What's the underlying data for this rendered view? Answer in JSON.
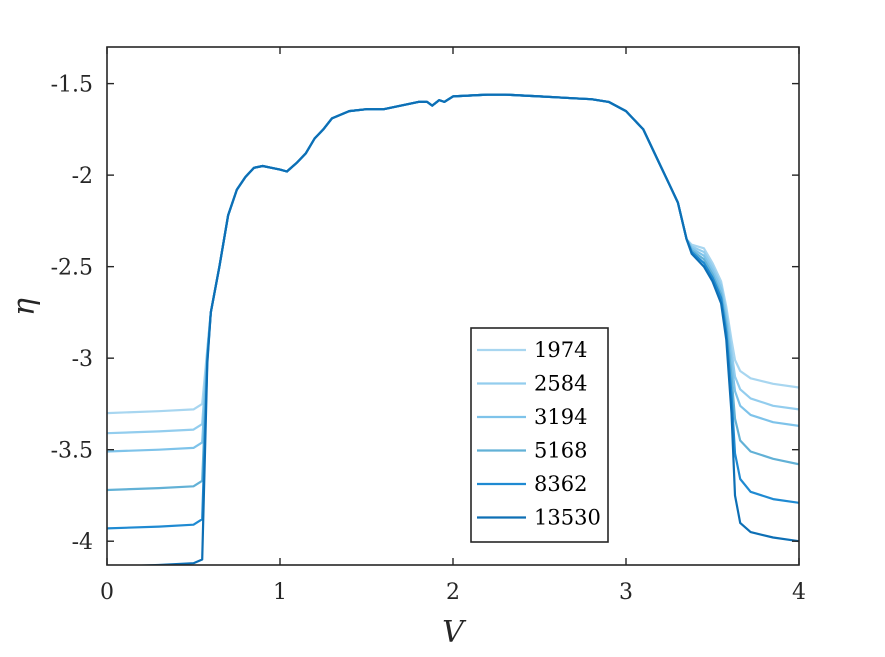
{
  "chart_data": {
    "type": "line",
    "xlabel": "V",
    "ylabel": "η",
    "xlim": [
      0,
      4
    ],
    "ylim": [
      -4.13,
      -1.3
    ],
    "y_reversed": true,
    "x_ticks": [
      0,
      1,
      2,
      3,
      4
    ],
    "y_ticks": [
      -1.5,
      -2,
      -2.5,
      -3,
      -3.5,
      -4
    ],
    "x_tick_labels": [
      "0",
      "1",
      "2",
      "3",
      "4"
    ],
    "y_tick_labels": [
      "-1.5",
      "-2",
      "-2.5",
      "-3",
      "-3.5",
      "-4"
    ],
    "grid": false,
    "legend_position": "bottom-center",
    "common_curve": [
      [
        0.56,
        -3.1
      ],
      [
        0.6,
        -2.75
      ],
      [
        0.65,
        -2.5
      ],
      [
        0.7,
        -2.22
      ],
      [
        0.75,
        -2.08
      ],
      [
        0.8,
        -2.01
      ],
      [
        0.85,
        -1.96
      ],
      [
        0.9,
        -1.95
      ],
      [
        0.95,
        -1.96
      ],
      [
        1.0,
        -1.97
      ],
      [
        1.04,
        -1.98
      ],
      [
        1.1,
        -1.93
      ],
      [
        1.15,
        -1.88
      ],
      [
        1.2,
        -1.8
      ],
      [
        1.25,
        -1.75
      ],
      [
        1.3,
        -1.69
      ],
      [
        1.4,
        -1.65
      ],
      [
        1.5,
        -1.64
      ],
      [
        1.6,
        -1.64
      ],
      [
        1.7,
        -1.62
      ],
      [
        1.8,
        -1.6
      ],
      [
        1.85,
        -1.6
      ],
      [
        1.88,
        -1.62
      ],
      [
        1.92,
        -1.59
      ],
      [
        1.95,
        -1.6
      ],
      [
        2.0,
        -1.57
      ],
      [
        2.1,
        -1.565
      ],
      [
        2.2,
        -1.56
      ],
      [
        2.3,
        -1.56
      ],
      [
        2.4,
        -1.565
      ],
      [
        2.5,
        -1.57
      ],
      [
        2.6,
        -1.575
      ],
      [
        2.7,
        -1.58
      ],
      [
        2.8,
        -1.585
      ],
      [
        2.9,
        -1.6
      ],
      [
        3.0,
        -1.65
      ],
      [
        3.1,
        -1.75
      ],
      [
        3.2,
        -1.95
      ],
      [
        3.25,
        -2.05
      ],
      [
        3.3,
        -2.15
      ],
      [
        3.35,
        -2.35
      ]
    ],
    "series": [
      {
        "name": "1974",
        "color": "#a8d6f0",
        "points": [
          [
            0,
            -3.3
          ],
          [
            0.3,
            -3.29
          ],
          [
            0.5,
            -3.28
          ],
          [
            0.55,
            -3.25
          ],
          [
            0.58,
            -2.95
          ],
          [
            3.38,
            -2.38
          ],
          [
            3.45,
            -2.4
          ],
          [
            3.5,
            -2.48
          ],
          [
            3.55,
            -2.58
          ],
          [
            3.58,
            -2.72
          ],
          [
            3.61,
            -2.9
          ],
          [
            3.63,
            -3.01
          ],
          [
            3.66,
            -3.07
          ],
          [
            3.72,
            -3.11
          ],
          [
            3.85,
            -3.14
          ],
          [
            4.0,
            -3.16
          ]
        ]
      },
      {
        "name": "2584",
        "color": "#93cdee",
        "points": [
          [
            0,
            -3.41
          ],
          [
            0.3,
            -3.4
          ],
          [
            0.5,
            -3.39
          ],
          [
            0.55,
            -3.36
          ],
          [
            0.58,
            -2.96
          ],
          [
            3.38,
            -2.39
          ],
          [
            3.45,
            -2.42
          ],
          [
            3.5,
            -2.5
          ],
          [
            3.55,
            -2.6
          ],
          [
            3.58,
            -2.75
          ],
          [
            3.61,
            -2.96
          ],
          [
            3.63,
            -3.1
          ],
          [
            3.66,
            -3.17
          ],
          [
            3.72,
            -3.22
          ],
          [
            3.85,
            -3.26
          ],
          [
            4.0,
            -3.28
          ]
        ]
      },
      {
        "name": "3194",
        "color": "#7ec3ea",
        "points": [
          [
            0,
            -3.51
          ],
          [
            0.3,
            -3.5
          ],
          [
            0.5,
            -3.49
          ],
          [
            0.55,
            -3.46
          ],
          [
            0.58,
            -2.97
          ],
          [
            3.38,
            -2.4
          ],
          [
            3.45,
            -2.44
          ],
          [
            3.5,
            -2.52
          ],
          [
            3.55,
            -2.62
          ],
          [
            3.58,
            -2.78
          ],
          [
            3.61,
            -3.02
          ],
          [
            3.63,
            -3.18
          ],
          [
            3.66,
            -3.26
          ],
          [
            3.72,
            -3.31
          ],
          [
            3.85,
            -3.35
          ],
          [
            4.0,
            -3.37
          ]
        ]
      },
      {
        "name": "5168",
        "color": "#62b1d6",
        "points": [
          [
            0,
            -3.72
          ],
          [
            0.3,
            -3.71
          ],
          [
            0.5,
            -3.7
          ],
          [
            0.55,
            -3.67
          ],
          [
            0.58,
            -2.99
          ],
          [
            3.38,
            -2.41
          ],
          [
            3.45,
            -2.46
          ],
          [
            3.5,
            -2.54
          ],
          [
            3.55,
            -2.65
          ],
          [
            3.58,
            -2.82
          ],
          [
            3.61,
            -3.1
          ],
          [
            3.63,
            -3.33
          ],
          [
            3.66,
            -3.45
          ],
          [
            3.72,
            -3.51
          ],
          [
            3.85,
            -3.55
          ],
          [
            4.0,
            -3.58
          ]
        ]
      },
      {
        "name": "8362",
        "color": "#1f8ad2",
        "points": [
          [
            0,
            -3.93
          ],
          [
            0.3,
            -3.92
          ],
          [
            0.5,
            -3.91
          ],
          [
            0.55,
            -3.88
          ],
          [
            0.58,
            -3.01
          ],
          [
            3.38,
            -2.42
          ],
          [
            3.45,
            -2.48
          ],
          [
            3.5,
            -2.56
          ],
          [
            3.55,
            -2.67
          ],
          [
            3.58,
            -2.86
          ],
          [
            3.61,
            -3.2
          ],
          [
            3.63,
            -3.52
          ],
          [
            3.66,
            -3.66
          ],
          [
            3.72,
            -3.73
          ],
          [
            3.85,
            -3.77
          ],
          [
            4.0,
            -3.79
          ]
        ]
      },
      {
        "name": "13530",
        "color": "#0d6fb5",
        "points": [
          [
            0,
            -4.14
          ],
          [
            0.3,
            -4.13
          ],
          [
            0.5,
            -4.12
          ],
          [
            0.55,
            -4.1
          ],
          [
            0.58,
            -3.03
          ],
          [
            3.38,
            -2.43
          ],
          [
            3.45,
            -2.5
          ],
          [
            3.5,
            -2.58
          ],
          [
            3.55,
            -2.7
          ],
          [
            3.58,
            -2.9
          ],
          [
            3.61,
            -3.3
          ],
          [
            3.63,
            -3.75
          ],
          [
            3.66,
            -3.9
          ],
          [
            3.72,
            -3.95
          ],
          [
            3.85,
            -3.98
          ],
          [
            4.0,
            -4.0
          ]
        ]
      }
    ]
  }
}
